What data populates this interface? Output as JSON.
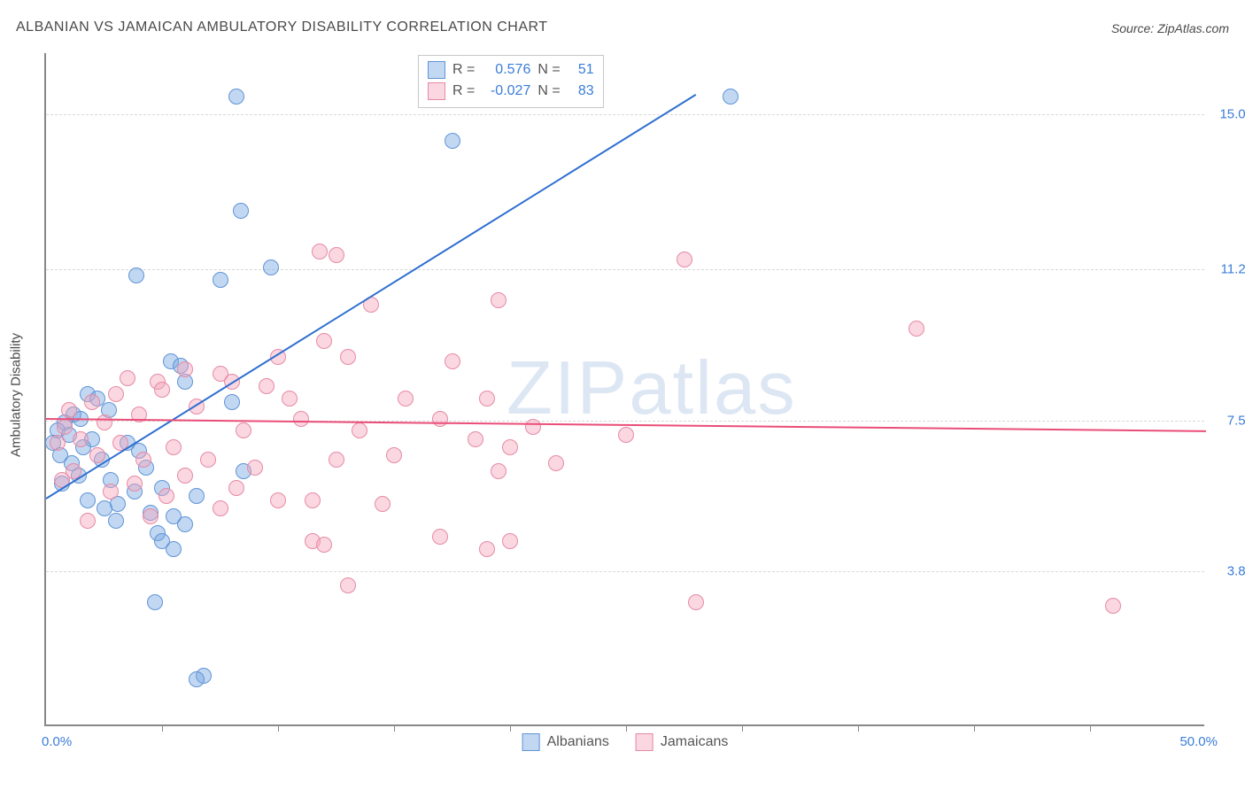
{
  "title": "ALBANIAN VS JAMAICAN AMBULATORY DISABILITY CORRELATION CHART",
  "source": "Source: ZipAtlas.com",
  "ylabel": "Ambulatory Disability",
  "watermark": {
    "zip": "ZIP",
    "atlas": "atlas"
  },
  "chart": {
    "type": "scatter",
    "background_color": "#ffffff",
    "grid_color": "#d8d8d8",
    "axis_color": "#888888",
    "xlim": [
      0,
      50
    ],
    "xlim_labels": [
      "0.0%",
      "50.0%"
    ],
    "x_ticks": [
      5,
      10,
      15,
      20,
      25,
      30,
      35,
      40,
      45
    ],
    "ylim": [
      0,
      16.5
    ],
    "y_ticks": [
      3.8,
      7.5,
      11.2,
      15.0
    ],
    "y_tick_labels": [
      "3.8%",
      "7.5%",
      "11.2%",
      "15.0%"
    ],
    "marker_radius": 9,
    "series": [
      {
        "name": "Albanians",
        "fill": "rgba(120,168,226,0.45)",
        "stroke": "#5f94d6",
        "line_color": "#2e6fd0",
        "R": "0.576",
        "N": "51",
        "trend": {
          "x1": 0,
          "y1": 5.6,
          "x2": 28,
          "y2": 15.5
        },
        "points": [
          [
            8.2,
            15.4
          ],
          [
            29.5,
            15.4
          ],
          [
            17.5,
            14.3
          ],
          [
            8.4,
            12.6
          ],
          [
            9.7,
            11.2
          ],
          [
            3.9,
            11.0
          ],
          [
            7.5,
            10.9
          ],
          [
            5.4,
            8.9
          ],
          [
            5.8,
            8.8
          ],
          [
            6.0,
            8.4
          ],
          [
            1.8,
            8.1
          ],
          [
            2.2,
            8.0
          ],
          [
            8.0,
            7.9
          ],
          [
            2.7,
            7.7
          ],
          [
            1.2,
            7.6
          ],
          [
            1.5,
            7.5
          ],
          [
            0.8,
            7.4
          ],
          [
            0.5,
            7.2
          ],
          [
            1.0,
            7.1
          ],
          [
            2.0,
            7.0
          ],
          [
            0.3,
            6.9
          ],
          [
            3.5,
            6.9
          ],
          [
            1.6,
            6.8
          ],
          [
            4.0,
            6.7
          ],
          [
            0.6,
            6.6
          ],
          [
            2.4,
            6.5
          ],
          [
            1.1,
            6.4
          ],
          [
            4.3,
            6.3
          ],
          [
            8.5,
            6.2
          ],
          [
            1.4,
            6.1
          ],
          [
            2.8,
            6.0
          ],
          [
            0.7,
            5.9
          ],
          [
            5.0,
            5.8
          ],
          [
            3.8,
            5.7
          ],
          [
            6.5,
            5.6
          ],
          [
            1.8,
            5.5
          ],
          [
            3.1,
            5.4
          ],
          [
            2.5,
            5.3
          ],
          [
            4.5,
            5.2
          ],
          [
            5.5,
            5.1
          ],
          [
            3.0,
            5.0
          ],
          [
            6.0,
            4.9
          ],
          [
            4.8,
            4.7
          ],
          [
            5.0,
            4.5
          ],
          [
            5.5,
            4.3
          ],
          [
            4.7,
            3.0
          ],
          [
            6.8,
            1.2
          ],
          [
            6.5,
            1.1
          ]
        ]
      },
      {
        "name": "Jamicans",
        "display_name": "Jamaicans",
        "fill": "rgba(244,166,188,0.45)",
        "stroke": "#e68aa5",
        "line_color": "#ea4d78",
        "R": "-0.027",
        "N": "83",
        "trend": {
          "x1": 0,
          "y1": 7.55,
          "x2": 50,
          "y2": 7.25
        },
        "points": [
          [
            27.5,
            11.4
          ],
          [
            11.8,
            11.6
          ],
          [
            12.5,
            11.5
          ],
          [
            14.0,
            10.3
          ],
          [
            19.5,
            10.4
          ],
          [
            37.5,
            9.7
          ],
          [
            12.0,
            9.4
          ],
          [
            10.0,
            9.0
          ],
          [
            13.0,
            9.0
          ],
          [
            17.5,
            8.9
          ],
          [
            6.0,
            8.7
          ],
          [
            7.5,
            8.6
          ],
          [
            3.5,
            8.5
          ],
          [
            4.8,
            8.4
          ],
          [
            8.0,
            8.4
          ],
          [
            9.5,
            8.3
          ],
          [
            5.0,
            8.2
          ],
          [
            3.0,
            8.1
          ],
          [
            10.5,
            8.0
          ],
          [
            15.5,
            8.0
          ],
          [
            19.0,
            8.0
          ],
          [
            2.0,
            7.9
          ],
          [
            6.5,
            7.8
          ],
          [
            1.0,
            7.7
          ],
          [
            4.0,
            7.6
          ],
          [
            11.0,
            7.5
          ],
          [
            17.0,
            7.5
          ],
          [
            2.5,
            7.4
          ],
          [
            0.8,
            7.3
          ],
          [
            8.5,
            7.2
          ],
          [
            13.5,
            7.2
          ],
          [
            21.0,
            7.3
          ],
          [
            1.5,
            7.0
          ],
          [
            0.5,
            6.9
          ],
          [
            3.2,
            6.9
          ],
          [
            5.5,
            6.8
          ],
          [
            18.5,
            7.0
          ],
          [
            25.0,
            7.1
          ],
          [
            2.2,
            6.6
          ],
          [
            4.2,
            6.5
          ],
          [
            7.0,
            6.5
          ],
          [
            9.0,
            6.3
          ],
          [
            12.5,
            6.5
          ],
          [
            15.0,
            6.6
          ],
          [
            20.0,
            6.8
          ],
          [
            22.0,
            6.4
          ],
          [
            1.2,
            6.2
          ],
          [
            6.0,
            6.1
          ],
          [
            0.7,
            6.0
          ],
          [
            3.8,
            5.9
          ],
          [
            8.2,
            5.8
          ],
          [
            2.8,
            5.7
          ],
          [
            5.2,
            5.6
          ],
          [
            11.5,
            5.5
          ],
          [
            14.5,
            5.4
          ],
          [
            10.0,
            5.5
          ],
          [
            7.5,
            5.3
          ],
          [
            4.5,
            5.1
          ],
          [
            19.5,
            6.2
          ],
          [
            1.8,
            5.0
          ],
          [
            17.0,
            4.6
          ],
          [
            11.5,
            4.5
          ],
          [
            12.0,
            4.4
          ],
          [
            20.0,
            4.5
          ],
          [
            19.0,
            4.3
          ],
          [
            13.0,
            3.4
          ],
          [
            28.0,
            3.0
          ],
          [
            46.0,
            2.9
          ]
        ]
      }
    ]
  },
  "legend": {
    "series1_label": "Albanians",
    "series2_label": "Jamaicans",
    "R_label": "R =",
    "N_label": "N ="
  }
}
